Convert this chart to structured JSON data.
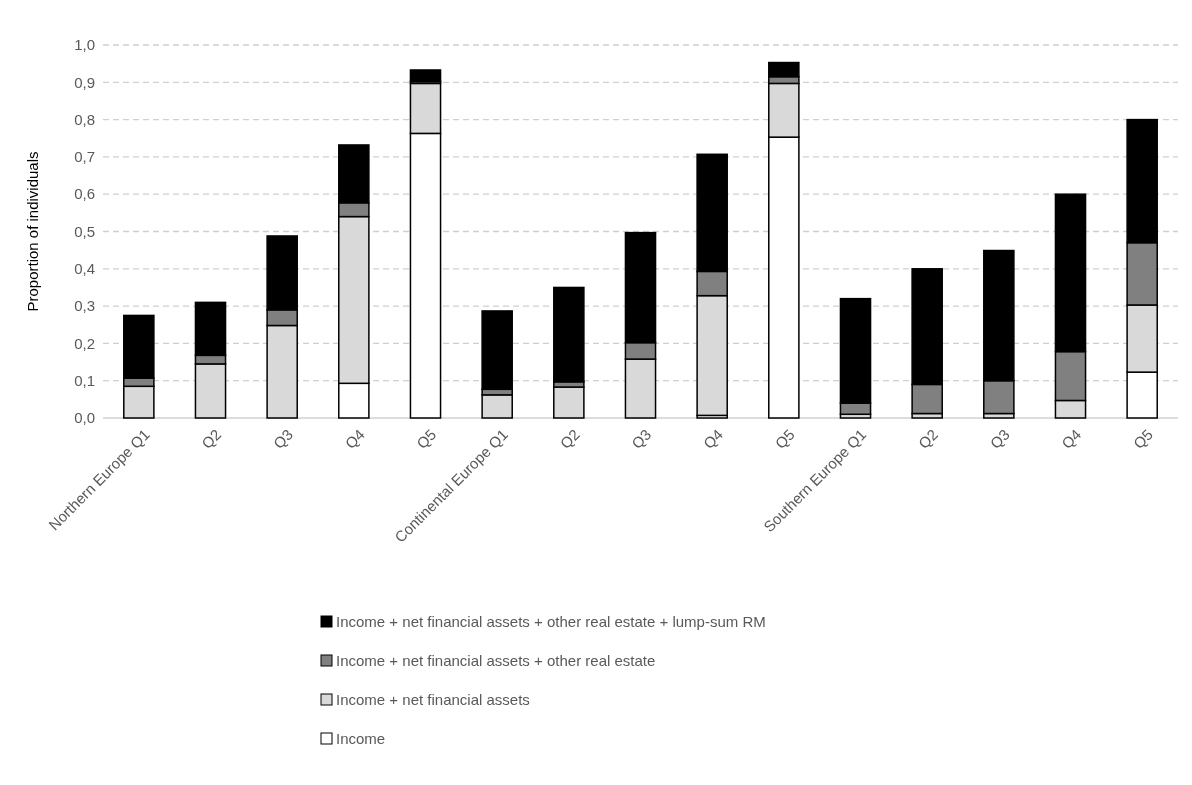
{
  "chart_data": {
    "type": "bar",
    "stacked": true,
    "ylabel": "Proportion of individuals",
    "categories": [
      "Northern Europe Q1",
      "Q2",
      "Q3",
      "Q4",
      "Q5",
      "Continental Europe Q1",
      "Q2",
      "Q3",
      "Q4",
      "Q5",
      "Southern Europe Q1",
      "Q2",
      "Q3",
      "Q4",
      "Q5"
    ],
    "series": [
      {
        "name": "Income",
        "color": "#ffffff",
        "values": [
          0,
          0,
          0,
          0.093,
          0.763,
          0,
          0,
          0,
          0.007,
          0.753,
          0,
          0,
          0,
          0,
          0.123
        ]
      },
      {
        "name": "Income + net financial assets",
        "color": "#d9d9d9",
        "values": [
          0.085,
          0.145,
          0.248,
          0.447,
          0.134,
          0.062,
          0.083,
          0.158,
          0.321,
          0.144,
          0.01,
          0.012,
          0.012,
          0.047,
          0.18
        ]
      },
      {
        "name": "Income + net financial assets + other real estate",
        "color": "#808080",
        "values": [
          0.022,
          0.023,
          0.042,
          0.037,
          0.005,
          0.015,
          0.014,
          0.044,
          0.065,
          0.018,
          0.03,
          0.078,
          0.088,
          0.131,
          0.167
        ]
      },
      {
        "name": "Income + net financial assets + other real estate + lump-sum RM",
        "color": "#000000",
        "values": [
          0.168,
          0.142,
          0.198,
          0.155,
          0.031,
          0.21,
          0.253,
          0.295,
          0.314,
          0.038,
          0.28,
          0.31,
          0.349,
          0.422,
          0.33
        ]
      }
    ],
    "ylim": [
      0,
      1
    ],
    "yticks": [
      {
        "value": 0,
        "label": "0,0"
      },
      {
        "value": 0.1,
        "label": "0,1"
      },
      {
        "value": 0.2,
        "label": "0,2"
      },
      {
        "value": 0.3,
        "label": "0,3"
      },
      {
        "value": 0.4,
        "label": "0,4"
      },
      {
        "value": 0.5,
        "label": "0,5"
      },
      {
        "value": 0.6,
        "label": "0,6"
      },
      {
        "value": 0.7,
        "label": "0,7"
      },
      {
        "value": 0.8,
        "label": "0,8"
      },
      {
        "value": 0.9,
        "label": "0,9"
      },
      {
        "value": 1,
        "label": "1,0"
      }
    ],
    "grid": "y",
    "legend": "bottom"
  }
}
